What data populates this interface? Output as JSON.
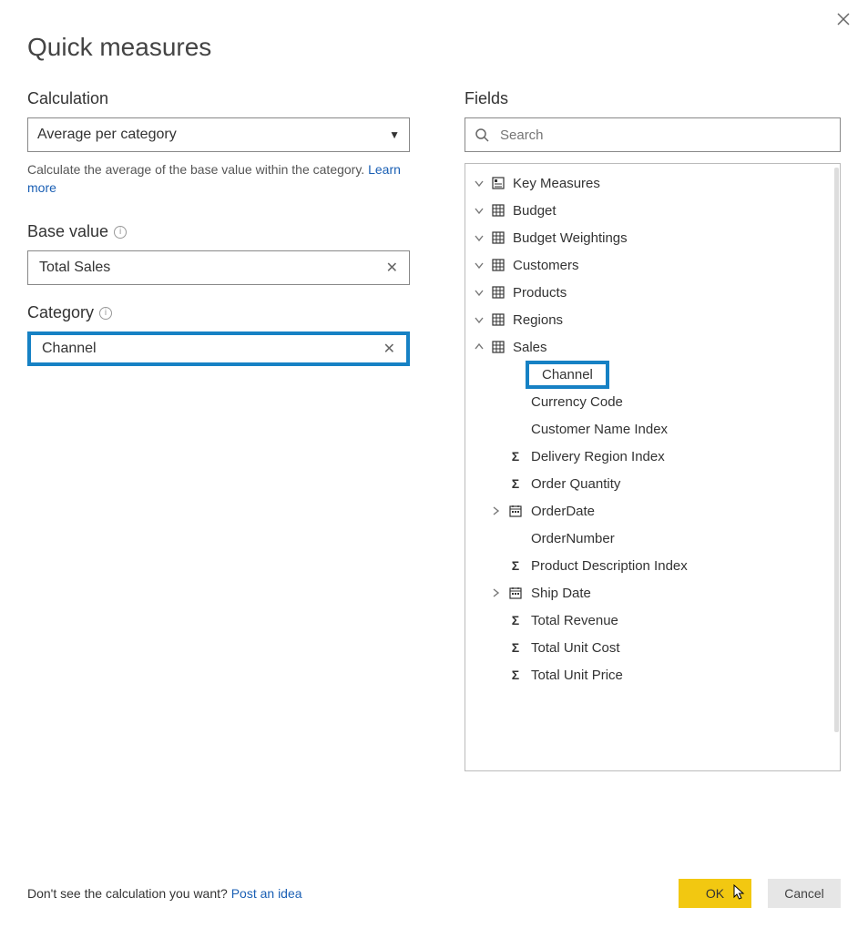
{
  "dialog": {
    "title": "Quick measures",
    "close_label": "Close"
  },
  "left": {
    "calculation_label": "Calculation",
    "calculation_value": "Average per category",
    "description_prefix": "Calculate the average of the base value within the category. ",
    "learn_more": "Learn more",
    "base_value_label": "Base value",
    "base_value": "Total Sales",
    "category_label": "Category",
    "category_value": "Channel"
  },
  "right": {
    "fields_label": "Fields",
    "search_placeholder": "Search",
    "tables": [
      {
        "name": "Key Measures",
        "icon": "measure",
        "expanded": false
      },
      {
        "name": "Budget",
        "icon": "table",
        "expanded": false
      },
      {
        "name": "Budget Weightings",
        "icon": "table",
        "expanded": false
      },
      {
        "name": "Customers",
        "icon": "table",
        "expanded": false
      },
      {
        "name": "Products",
        "icon": "table",
        "expanded": false
      },
      {
        "name": "Regions",
        "icon": "table",
        "expanded": false
      },
      {
        "name": "Sales",
        "icon": "table",
        "expanded": true
      }
    ],
    "sales_fields": [
      {
        "name": "Channel",
        "icon": "none",
        "highlight": true
      },
      {
        "name": "Currency Code",
        "icon": "none"
      },
      {
        "name": "Customer Name Index",
        "icon": "none"
      },
      {
        "name": "Delivery Region Index",
        "icon": "sigma"
      },
      {
        "name": "Order Quantity",
        "icon": "sigma"
      },
      {
        "name": "OrderDate",
        "icon": "date",
        "expandable": true
      },
      {
        "name": "OrderNumber",
        "icon": "none"
      },
      {
        "name": "Product Description Index",
        "icon": "sigma"
      },
      {
        "name": "Ship Date",
        "icon": "date",
        "expandable": true
      },
      {
        "name": "Total Revenue",
        "icon": "sigma"
      },
      {
        "name": "Total Unit Cost",
        "icon": "sigma"
      },
      {
        "name": "Total Unit Price",
        "icon": "sigma"
      }
    ]
  },
  "footer": {
    "prompt": "Don't see the calculation you want? ",
    "link": "Post an idea",
    "ok": "OK",
    "cancel": "Cancel"
  },
  "colors": {
    "highlight_border": "#1681c4",
    "ok_button": "#f2c811",
    "cancel_button": "#e6e6e6",
    "link": "#1a5fb4"
  }
}
